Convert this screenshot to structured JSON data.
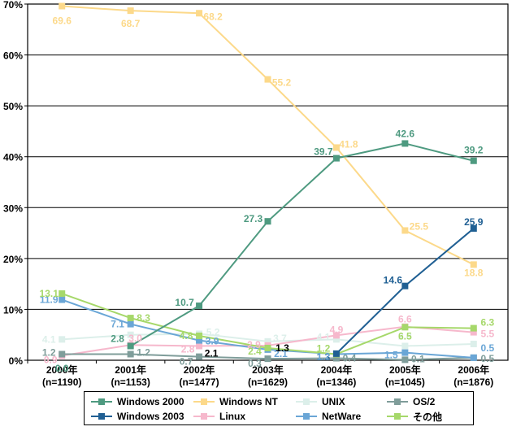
{
  "chart_data": {
    "type": "line",
    "categories": [
      "2000年",
      "2001年",
      "2002年",
      "2003年",
      "2004年",
      "2005年",
      "2006年"
    ],
    "category_sublabels": [
      "(n=1190)",
      "(n=1153)",
      "(n=1477)",
      "(n=1629)",
      "(n=1346)",
      "(n=1045)",
      "(n=1876)"
    ],
    "ylim": [
      0,
      70
    ],
    "yticks": [
      0,
      10,
      20,
      30,
      40,
      50,
      60,
      70
    ],
    "ytick_labels": [
      "0%",
      "10%",
      "20%",
      "30%",
      "40%",
      "50%",
      "60%",
      "70%"
    ],
    "grid": true,
    "legend_position": "bottom",
    "series": [
      {
        "name": "Windows 2000",
        "color": "#4e9a80",
        "values": [
          null,
          2.8,
          10.7,
          27.3,
          39.7,
          42.6,
          39.2
        ],
        "labels": [
          "",
          "2.8",
          "10.7",
          "27.3",
          "39.7",
          "42.6",
          "39.2"
        ]
      },
      {
        "name": "Windows 2003",
        "color": "#1f5f93",
        "values": [
          null,
          null,
          null,
          null,
          1.3,
          14.6,
          25.9
        ],
        "labels": [
          "",
          "",
          "",
          "",
          "1.3",
          "14.6",
          "25.9"
        ]
      },
      {
        "name": "Windows NT",
        "color": "#fcd98a",
        "values": [
          69.6,
          68.7,
          68.2,
          55.2,
          41.8,
          25.5,
          18.8
        ],
        "labels": [
          "69.6",
          "68.7",
          "68.2",
          "55.2",
          "41.8",
          "25.5",
          "18.8"
        ]
      },
      {
        "name": "Linux",
        "color": "#f6b8cc",
        "values": [
          0.9,
          3.0,
          2.8,
          2.9,
          4.9,
          6.6,
          5.5
        ],
        "labels": [
          "0.9",
          "3.0",
          "2.8",
          "2.9",
          "4.9",
          "6.6",
          "5.5"
        ]
      },
      {
        "name": "UNIX",
        "color": "#dcefea",
        "values": [
          4.1,
          5.0,
          5.2,
          3.7,
          4.1,
          2.8,
          3.2
        ],
        "labels": [
          "4.1",
          "",
          "5.2",
          "3.7",
          "4.1",
          "2.8",
          ""
        ]
      },
      {
        "name": "NetWare",
        "color": "#6aa6d6",
        "values": [
          11.9,
          7.1,
          3.9,
          2.1,
          1.2,
          1.5,
          0.5
        ],
        "labels": [
          "11.9",
          "7.1",
          "3.9",
          "2.1",
          "1.2",
          "1.5",
          "0.5"
        ]
      },
      {
        "name": "OS/2",
        "color": "#7f9d9a",
        "values": [
          1.2,
          1.2,
          0.7,
          0.3,
          0.4,
          0.1,
          0.5
        ],
        "labels": [
          "1.2",
          "1.2",
          "0.7",
          "0.3",
          "0.4",
          "0.1",
          "0.5"
        ]
      },
      {
        "name": "その他",
        "color": "#a6d86a",
        "values": [
          13.1,
          8.3,
          4.8,
          2.4,
          1.2,
          6.5,
          6.3
        ],
        "labels": [
          "13.1",
          "8.3",
          "4.8",
          "2.4",
          "1.2",
          "6.5",
          "6.3"
        ]
      }
    ],
    "annotations": [
      {
        "text": "0.0",
        "x": "2000年",
        "y": 0.0,
        "color": "#4e9a80"
      },
      {
        "text": "2.1",
        "x": "2002年",
        "y": 0.7,
        "color": "#000000"
      },
      {
        "text": "1.3",
        "x": "2003年",
        "y": 2.1,
        "color": "#000000"
      }
    ]
  }
}
